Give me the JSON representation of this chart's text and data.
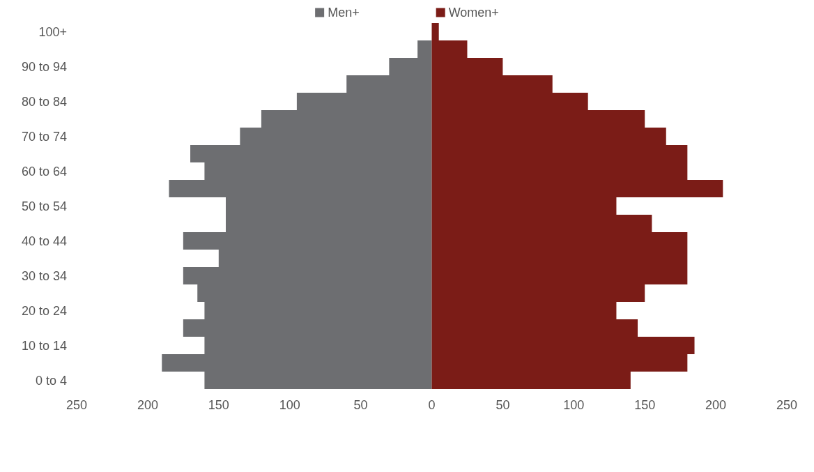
{
  "chart_data": {
    "type": "bar",
    "orientation": "horizontal",
    "categories": [
      "100+",
      null,
      "90 to 94",
      null,
      "80 to 84",
      null,
      "70 to 74",
      null,
      "60 to 64",
      null,
      "50 to 54",
      null,
      "40 to 44",
      null,
      "30 to 34",
      null,
      "20 to 24",
      null,
      "10 to 14",
      null,
      "0 to 4"
    ],
    "series": [
      {
        "name": "Men+",
        "color": "#6d6e71",
        "values": [
          0,
          -10,
          -30,
          -60,
          -95,
          -120,
          -135,
          -170,
          -160,
          -185,
          -145,
          -145,
          -175,
          -150,
          -175,
          -165,
          -160,
          -175,
          -160,
          -190,
          -160
        ]
      },
      {
        "name": "Women+",
        "color": "#7b1c17",
        "values": [
          5,
          25,
          50,
          85,
          110,
          150,
          165,
          180,
          180,
          205,
          130,
          155,
          180,
          180,
          180,
          150,
          130,
          145,
          185,
          180,
          140
        ]
      }
    ],
    "xlim": [
      -250,
      250
    ],
    "xticks": [
      {
        "value": -250,
        "label": "250"
      },
      {
        "value": -200,
        "label": "200"
      },
      {
        "value": -150,
        "label": "150"
      },
      {
        "value": -100,
        "label": "100"
      },
      {
        "value": -50,
        "label": "50"
      },
      0,
      50,
      100,
      150,
      200,
      250
    ],
    "grid": false,
    "legend": "top",
    "stacked": true
  }
}
